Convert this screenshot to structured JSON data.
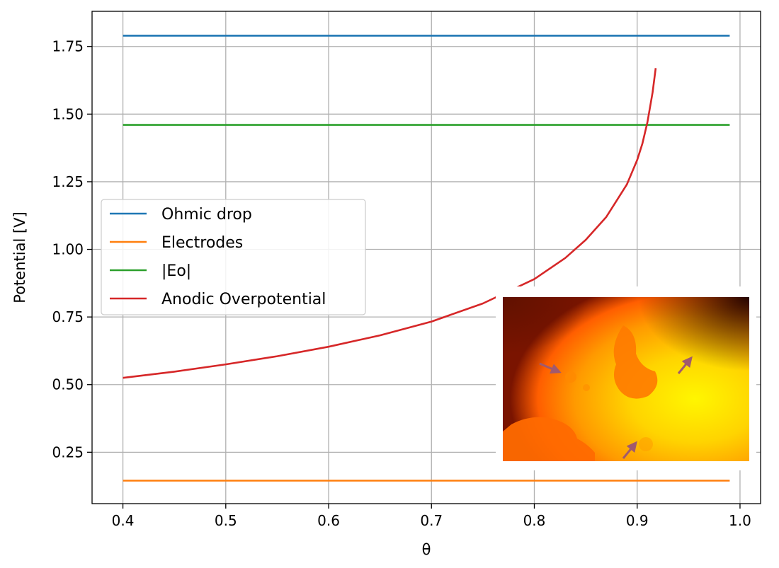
{
  "chart_data": {
    "type": "line",
    "title": "",
    "xlabel": "θ",
    "ylabel": "Potential [V]",
    "xlim": [
      0.37,
      1.02
    ],
    "ylim": [
      0.06,
      1.88
    ],
    "xticks": [
      0.4,
      0.5,
      0.6,
      0.7,
      0.8,
      0.9,
      1.0
    ],
    "xtick_labels": [
      "0.4",
      "0.5",
      "0.6",
      "0.7",
      "0.8",
      "0.9",
      "1.0"
    ],
    "yticks": [
      0.25,
      0.5,
      0.75,
      1.0,
      1.25,
      1.5,
      1.75
    ],
    "ytick_labels": [
      "0.25",
      "0.50",
      "0.75",
      "1.00",
      "1.25",
      "1.50",
      "1.75"
    ],
    "grid": true,
    "legend_position": "center-left",
    "series": [
      {
        "name": "Ohmic drop",
        "color": "#1f77b4",
        "x": [
          0.4,
          0.99
        ],
        "y": [
          1.79,
          1.79
        ]
      },
      {
        "name": "Electrodes",
        "color": "#ff7f0e",
        "x": [
          0.4,
          0.99
        ],
        "y": [
          0.145,
          0.145
        ]
      },
      {
        "name": "|Eo|",
        "color": "#2ca02c",
        "x": [
          0.4,
          0.99
        ],
        "y": [
          1.46,
          1.46
        ]
      },
      {
        "name": "Anodic Overpotential",
        "color": "#d62728",
        "x": [
          0.4,
          0.45,
          0.5,
          0.55,
          0.6,
          0.65,
          0.7,
          0.75,
          0.8,
          0.83,
          0.85,
          0.87,
          0.88,
          0.89,
          0.9,
          0.905,
          0.91,
          0.915,
          0.918
        ],
        "y": [
          0.525,
          0.548,
          0.575,
          0.605,
          0.64,
          0.682,
          0.733,
          0.8,
          0.89,
          0.968,
          1.035,
          1.12,
          1.18,
          1.24,
          1.33,
          1.39,
          1.47,
          1.58,
          1.67
        ]
      }
    ]
  },
  "inset_image": {
    "description_colors": [
      "#3a0a00",
      "#ff5a00",
      "#ffb000",
      "#fff200"
    ],
    "arrow_color": "#a05a6e"
  }
}
